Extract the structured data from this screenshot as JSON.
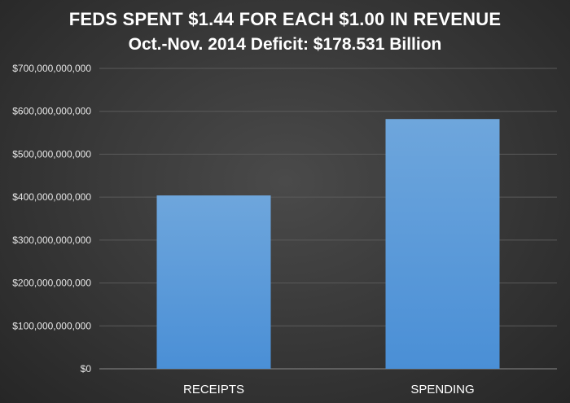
{
  "chart_data": {
    "type": "bar",
    "title": "FEDS SPENT $1.44 FOR EACH $1.00 IN REVENUE",
    "subtitle": "Oct.-Nov. 2014 Deficit: $178.531 Billion",
    "categories": [
      "RECEIPTS",
      "SPENDING"
    ],
    "values": [
      404000000000,
      582000000000
    ],
    "ylim": [
      0,
      700000000000
    ],
    "yticks": [
      0,
      100000000000,
      200000000000,
      300000000000,
      400000000000,
      500000000000,
      600000000000,
      700000000000
    ],
    "ytick_labels": [
      "$0",
      "$100,000,000,000",
      "$200,000,000,000",
      "$300,000,000,000",
      "$400,000,000,000",
      "$500,000,000,000",
      "$600,000,000,000",
      "$700,000,000,000"
    ],
    "grid": true,
    "legend": "none",
    "colors": {
      "bar_top": "#6ea6dc",
      "bar_bottom": "#4a8fd6",
      "grid": "#5a5a5a",
      "background": "#3a3a3a"
    }
  }
}
